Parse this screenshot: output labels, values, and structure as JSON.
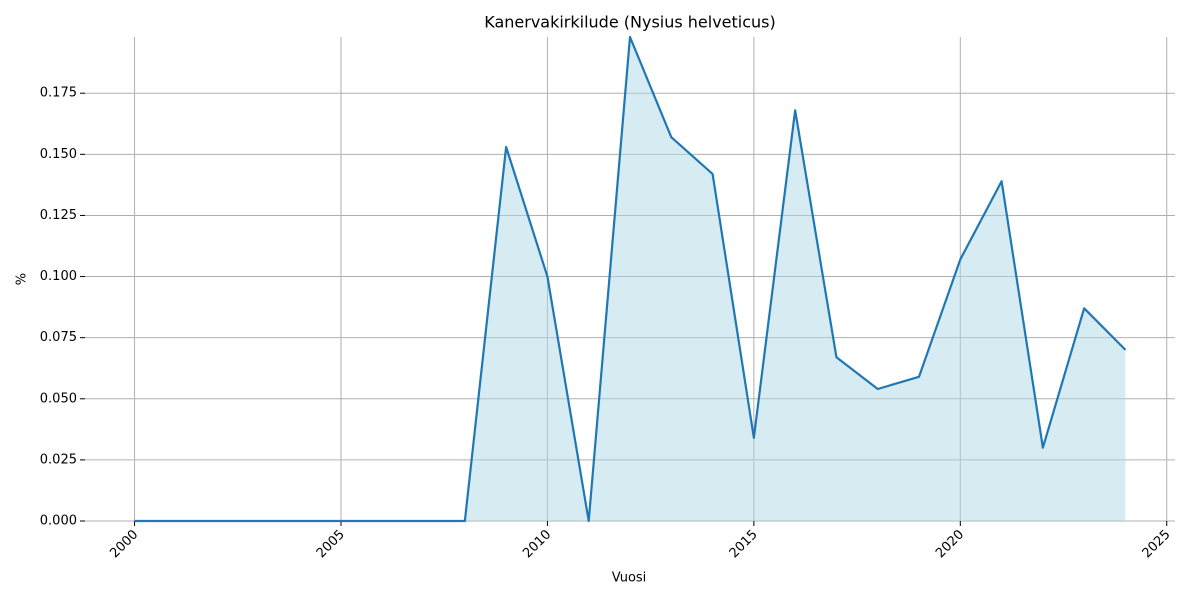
{
  "chart_data": {
    "type": "area",
    "title": "Kanervakirkilude (Nysius helveticus)",
    "xlabel": "Vuosi",
    "ylabel": "%",
    "x": [
      2000,
      2001,
      2002,
      2003,
      2004,
      2005,
      2006,
      2007,
      2008,
      2009,
      2010,
      2011,
      2012,
      2013,
      2014,
      2015,
      2016,
      2017,
      2018,
      2019,
      2020,
      2021,
      2022,
      2023,
      2024
    ],
    "series": [
      {
        "name": "Kanervakirkilude",
        "color": "#1f77b4",
        "fill": "#add8e6",
        "values": [
          0,
          0,
          0,
          0,
          0,
          0,
          0,
          0,
          0,
          0.153,
          0.1,
          0,
          0.198,
          0.157,
          0.142,
          0.034,
          0.168,
          0.067,
          0.054,
          0.059,
          0.107,
          0.139,
          0.03,
          0.087,
          0.07
        ]
      }
    ],
    "xlim": [
      1998.8,
      2025.2
    ],
    "xticks": [
      2000,
      2005,
      2010,
      2015,
      2020,
      2025
    ],
    "ylim": [
      0,
      0.198
    ],
    "yticks": [
      {
        "value": 0,
        "label": "0.000"
      },
      {
        "value": 0.025,
        "label": "0.025"
      },
      {
        "value": 0.05,
        "label": "0.050"
      },
      {
        "value": 0.075,
        "label": "0.075"
      },
      {
        "value": 0.1,
        "label": "0.100"
      },
      {
        "value": 0.125,
        "label": "0.125"
      },
      {
        "value": 0.15,
        "label": "0.150"
      },
      {
        "value": 0.175,
        "label": "0.175"
      }
    ],
    "grid": true
  }
}
